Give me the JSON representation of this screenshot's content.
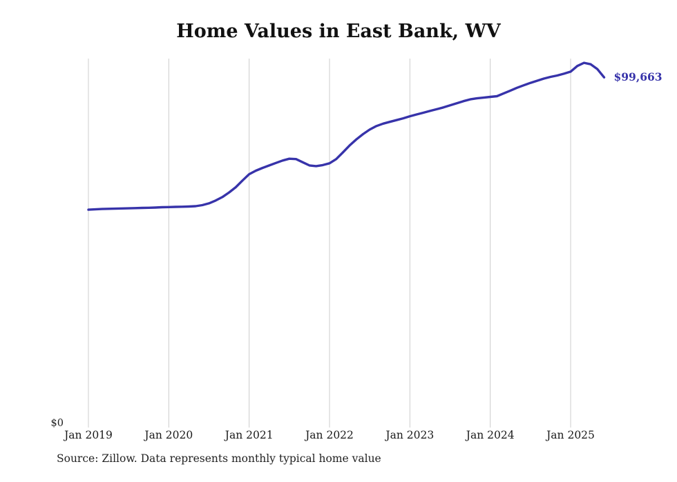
{
  "page": {
    "title": "Home Values in East Bank, WV",
    "source": "Source: Zillow. Data represents monthly typical home value",
    "end_label": "$99,663",
    "y_zero_label": "$0"
  },
  "colors": {
    "line": "#3733aa",
    "grid": "#cccccc",
    "end_label": "#3733aa",
    "text": "#1a1a1a"
  },
  "chart_data": {
    "type": "line",
    "title": "Home Values in East Bank, WV",
    "x_start": "Jan 2019",
    "x_end": "Jun 2025",
    "x_interval": "monthly",
    "x_tick_labels": [
      "Jan 2019",
      "Jan 2020",
      "Jan 2021",
      "Jan 2022",
      "Jan 2023",
      "Jan 2024",
      "Jan 2025"
    ],
    "x_tick_month_indices": [
      0,
      12,
      24,
      36,
      48,
      60,
      72
    ],
    "ylabel": "",
    "xlabel": "",
    "ylim": [
      0,
      105000
    ],
    "unit": "USD",
    "grid": "vertical-only",
    "legend": "none",
    "end_value": 99663,
    "series": [
      {
        "name": "Typical home value",
        "values": [
          62000,
          62100,
          62200,
          62250,
          62300,
          62350,
          62400,
          62450,
          62500,
          62550,
          62600,
          62700,
          62750,
          62800,
          62850,
          62900,
          63000,
          63300,
          63800,
          64600,
          65600,
          66900,
          68400,
          70300,
          72100,
          73100,
          73900,
          74600,
          75300,
          76000,
          76500,
          76400,
          75500,
          74600,
          74400,
          74700,
          75200,
          76400,
          78300,
          80300,
          82000,
          83500,
          84800,
          85800,
          86500,
          87000,
          87500,
          88000,
          88600,
          89100,
          89600,
          90100,
          90600,
          91100,
          91700,
          92300,
          92900,
          93400,
          93700,
          93900,
          94100,
          94300,
          95100,
          95900,
          96700,
          97400,
          98100,
          98700,
          99300,
          99800,
          100200,
          100700,
          101300,
          102900,
          103800,
          103400,
          102000,
          99663
        ]
      }
    ]
  }
}
